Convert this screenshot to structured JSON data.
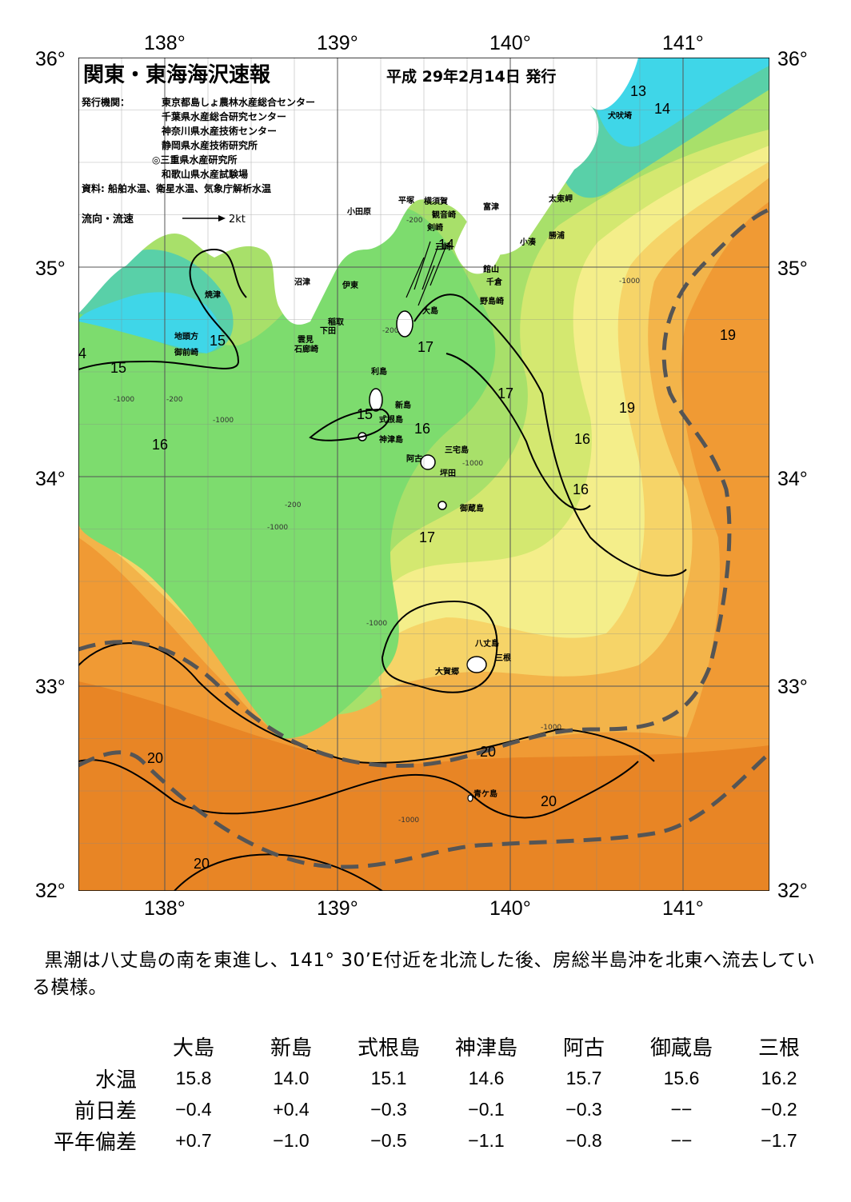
{
  "map": {
    "title": "関東・東海海沢速報",
    "date": "平成 29年2月14日 発行",
    "publisher_label": "発行機関：",
    "publishers": [
      "東京都島しょ農林水産総合センター",
      "千葉県水産総合研究センター",
      "神奈川県水産技術センター",
      "静岡県水産技術研究所",
      "◎三重県水産研究所",
      "和歌山県水産試験場"
    ],
    "source": "資料: 船舶水温、衛星水温、気象庁解析水温",
    "current_legend": "流向・流速",
    "current_scale": "2kt",
    "lon_labels": [
      "138°",
      "139°",
      "140°",
      "141°"
    ],
    "lat_labels": [
      "36°",
      "35°",
      "34°",
      "33°",
      "32°"
    ],
    "place_labels": [
      "小田原",
      "平塚",
      "横須賀",
      "観音崎",
      "剣崎",
      "三崎",
      "富津",
      "太東岬",
      "勝浦",
      "小湊",
      "館山",
      "千倉",
      "野島崎",
      "沼津",
      "伊東",
      "稲取",
      "下田",
      "雲見",
      "石廊崎",
      "焼津",
      "地頭方",
      "御前崎",
      "大島",
      "利島",
      "新島",
      "式根島",
      "神津島",
      "三宅島",
      "阿古",
      "坪田",
      "御蔵島",
      "八丈島",
      "三根",
      "大賀郷",
      "青ケ島",
      "犬吠埼"
    ],
    "isotherm_labels": [
      "13",
      "14",
      "14",
      "15",
      "15",
      "15",
      "16",
      "16",
      "16",
      "16",
      "16",
      "17",
      "17",
      "17",
      "19",
      "19",
      "20",
      "20",
      "20",
      "20",
      "4"
    ],
    "depth_labels": [
      "-200",
      "-1000"
    ]
  },
  "summary": "黒潮は八丈島の南を東進し、141° 30’E付近を北流した後、房総半島沖を北東へ流去している模様。",
  "table": {
    "stations": [
      "大島",
      "新島",
      "式根島",
      "神津島",
      "阿古",
      "御蔵島",
      "三根"
    ],
    "rows": [
      {
        "label": "水温",
        "values": [
          "15.8",
          "14.0",
          "15.1",
          "14.6",
          "15.7",
          "15.6",
          "16.2"
        ]
      },
      {
        "label": "前日差",
        "values": [
          "−0.4",
          "+0.4",
          "−0.3",
          "−0.1",
          "−0.3",
          "−−",
          "−0.2"
        ]
      },
      {
        "label": "平年偏差",
        "values": [
          "+0.7",
          "−1.0",
          "−0.5",
          "−1.1",
          "−0.8",
          "−−",
          "−1.7"
        ]
      }
    ]
  },
  "colors": {
    "cold_cyan": "#3fd6e8",
    "cool_teal": "#59d0a8",
    "green": "#7ddc6e",
    "light_green": "#a8e06a",
    "yellow_green": "#d4e870",
    "pale_yellow": "#f4ee8a",
    "yellow": "#f6d468",
    "light_orange": "#f3b44a",
    "orange": "#f09a34",
    "deep_orange": "#e88525",
    "land": "#ffffff",
    "kuroshio_axis": "#555555"
  }
}
